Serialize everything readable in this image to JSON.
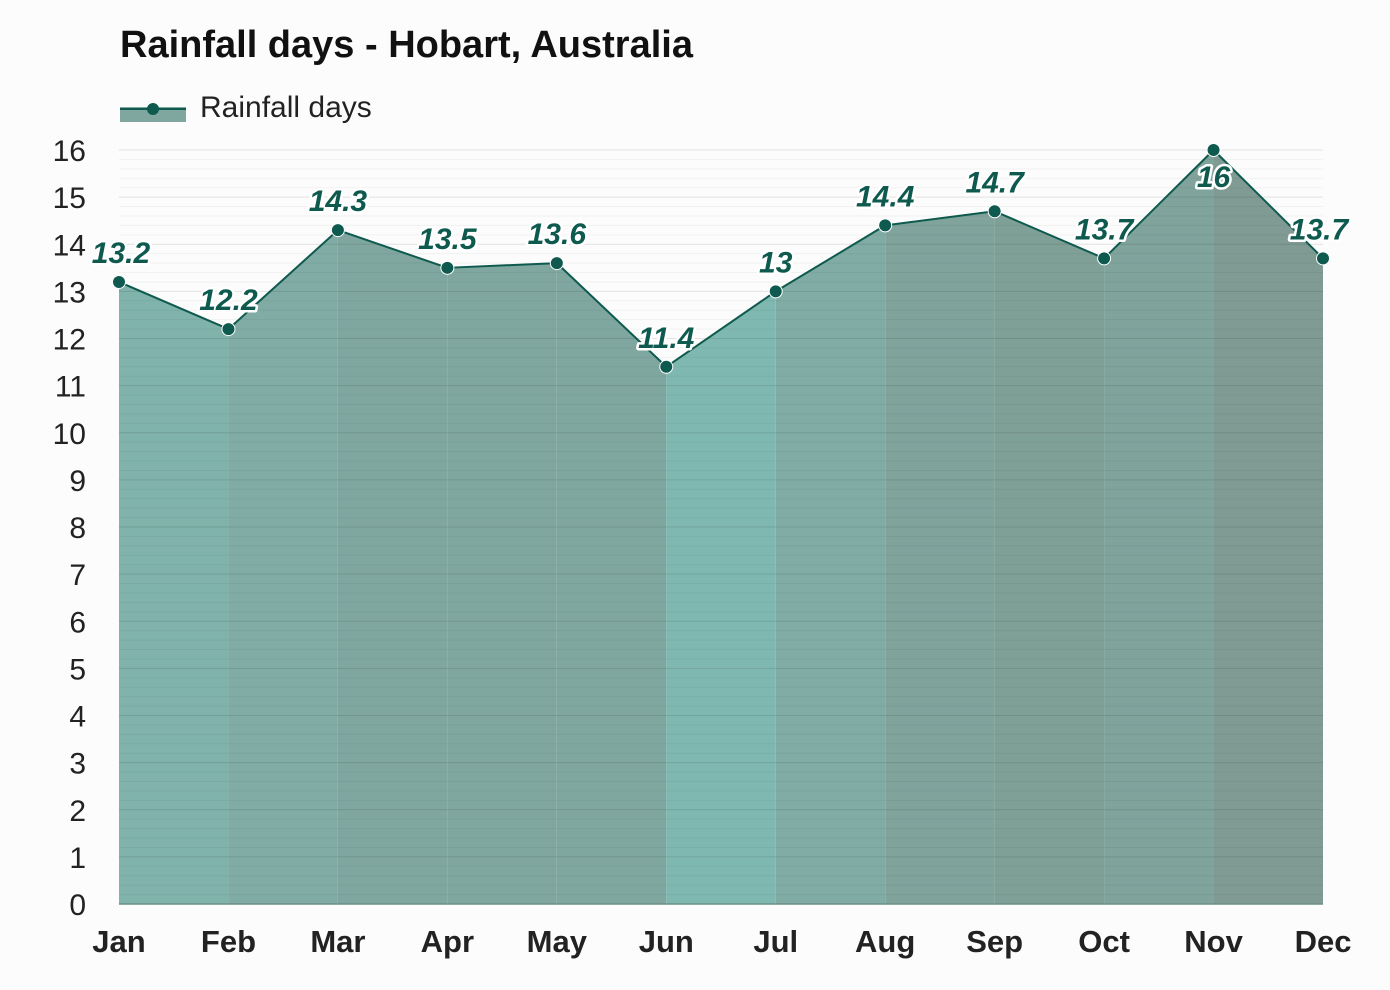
{
  "chart_data": {
    "type": "area",
    "title": "Rainfall days - Hobart, Australia",
    "xlabel": "",
    "ylabel": "",
    "categories": [
      "Jan",
      "Feb",
      "Mar",
      "Apr",
      "May",
      "Jun",
      "Jul",
      "Aug",
      "Sep",
      "Oct",
      "Nov",
      "Dec"
    ],
    "series": [
      {
        "name": "Rainfall days",
        "values": [
          13.2,
          12.2,
          14.3,
          13.5,
          13.6,
          11.4,
          13,
          14.4,
          14.7,
          13.7,
          16,
          13.7
        ],
        "labels": [
          "13.2",
          "12.2",
          "14.3",
          "13.5",
          "13.6",
          "11.4",
          "13",
          "14.4",
          "14.7",
          "13.7",
          "16",
          "13.7"
        ]
      }
    ],
    "ylim": [
      0,
      16
    ],
    "yticks": [
      0,
      1,
      2,
      3,
      4,
      5,
      6,
      7,
      8,
      9,
      10,
      11,
      12,
      13,
      14,
      15,
      16
    ],
    "grid": true,
    "legend_position": "top-left",
    "colors": {
      "line": "#0e5a4e",
      "label": "#0e5a4e",
      "band_fills": [
        "#7fb3ab",
        "#80aca5",
        "#7fa79f",
        "#7fa79f",
        "#7fa79f",
        "#7fb8b0",
        "#80aca5",
        "#80a39c",
        "#7fa097",
        "#80a39c",
        "#7f9b93",
        "#7fa79f"
      ]
    }
  }
}
